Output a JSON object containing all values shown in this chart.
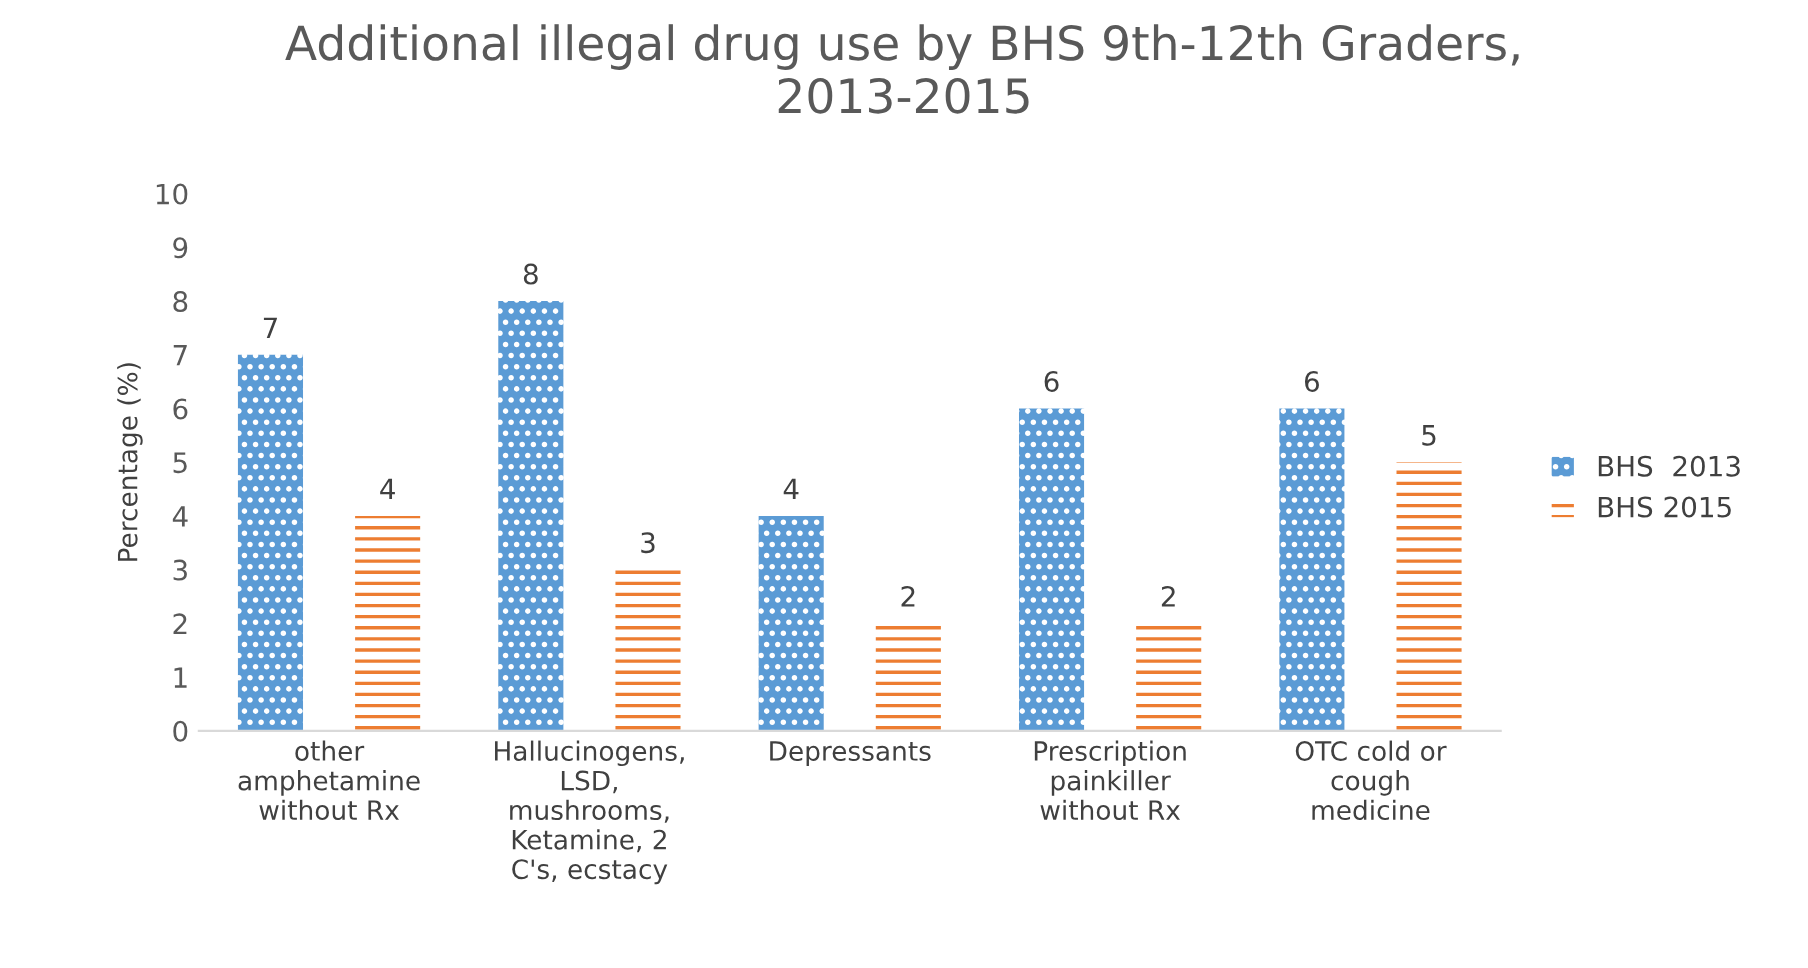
{
  "chart_data": {
    "type": "bar",
    "title": "Additional illegal drug use by BHS 9th-12th Graders,\n2013-2015",
    "ylabel": "Percentage (%)",
    "categories": [
      "other\namphetamine\nwithout Rx",
      "Hallucinogens,\nLSD,\nmushrooms,\nKetamine, 2\nC's, ecstacy",
      "Depressants",
      "Prescription\npainkiller\nwithout Rx",
      "OTC cold or\ncough\nmedicine"
    ],
    "series": [
      {
        "name": "BHS  2013",
        "color": "#5b9bd5",
        "values": [
          7,
          8,
          4,
          6,
          6
        ]
      },
      {
        "name": "BHS 2015",
        "color": "#ed7d31",
        "values": [
          4,
          3,
          2,
          2,
          5
        ]
      }
    ],
    "ylim": [
      0,
      10
    ],
    "yticks": [
      0,
      1,
      2,
      3,
      4,
      5,
      6,
      7,
      8,
      9,
      10
    ],
    "grid": false,
    "legend": "right",
    "data_labels": true
  }
}
